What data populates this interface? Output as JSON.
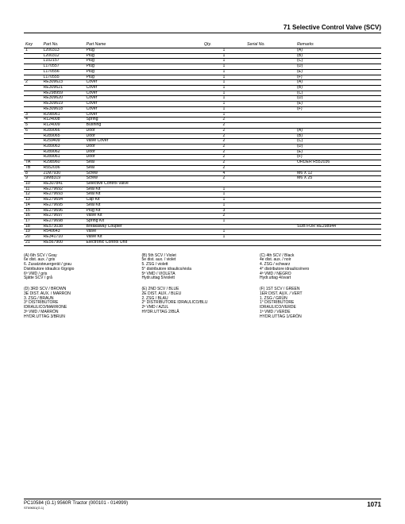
{
  "header": {
    "title": "71 Selective Control Valve (SCV)"
  },
  "columns": [
    "Key",
    "Part No.",
    "Part Name",
    "Qty.",
    "Serial No.",
    "Remarks"
  ],
  "rows": [
    [
      "1",
      "L200313",
      "Plug",
      "1",
      "",
      "(A)"
    ],
    [
      "",
      "L200312",
      "Plug",
      "1",
      "",
      "(B)"
    ],
    [
      "",
      "L102157",
      "Plug",
      "1",
      "",
      "(C)"
    ],
    [
      "",
      "L170557",
      "Plug",
      "1",
      "",
      "(D)"
    ],
    [
      "",
      "L170556",
      "Plug",
      "1",
      "",
      "(E)"
    ],
    [
      "",
      "L170555",
      "Plug",
      "1",
      "",
      "(F)"
    ],
    [
      "2",
      "RE309623",
      "Cover",
      "1",
      "",
      "(A)"
    ],
    [
      "",
      "RE309621",
      "Cover",
      "1",
      "",
      "(B)"
    ],
    [
      "",
      "RE298959",
      "Cover",
      "1",
      "",
      "(C)"
    ],
    [
      "",
      "RE309620",
      "Cover",
      "1",
      "",
      "(D)"
    ],
    [
      "",
      "RE309619",
      "Cover",
      "1",
      "",
      "(E)"
    ],
    [
      "",
      "RE309618",
      "Cover",
      "1",
      "",
      "(F)"
    ],
    [
      "3",
      "R298961",
      "Cover",
      "1",
      "",
      ""
    ],
    [
      "4",
      "R124008",
      "Spring",
      "2",
      "",
      ""
    ],
    [
      "5",
      "R124009",
      "Bushing",
      "2",
      "",
      ""
    ],
    [
      "6",
      "R289066",
      "Door",
      "2",
      "",
      "(A)"
    ],
    [
      "",
      "R289065",
      "Door",
      "2",
      "",
      "(B)"
    ],
    [
      "",
      "R259409",
      "Valve Cover",
      "2",
      "",
      "(C)"
    ],
    [
      "",
      "R289063",
      "Door",
      "2",
      "",
      "(D)"
    ],
    [
      "",
      "R289062",
      "Door",
      "2",
      "",
      "(E)"
    ],
    [
      "",
      "R289061",
      "Door",
      "2",
      "",
      "(F)"
    ],
    [
      "7A",
      "R298960",
      "Seal",
      "2",
      "",
      "ORDER R552036"
    ],
    [
      "7B",
      "R552036",
      "Seal",
      "2",
      "",
      ""
    ],
    [
      "8",
      "21M7930",
      "Screw",
      "4",
      "",
      "M6 X 12"
    ],
    [
      "9",
      "19M8319",
      "Screw",
      "2",
      "",
      "M6 X 25"
    ],
    [
      "10",
      "RE307841",
      "Selective Control Valve",
      "",
      "",
      ""
    ],
    [
      "11",
      "RE279692",
      "Seal Kit",
      "1",
      "",
      ""
    ],
    [
      "12",
      "RE279693",
      "Seal Kit",
      "1",
      "",
      ""
    ],
    [
      "13",
      "RE279694",
      "Cap Kit",
      "1",
      "",
      ""
    ],
    [
      "14",
      "RE279695",
      "Seal Kit",
      "1",
      "",
      ""
    ],
    [
      "15",
      "RE279696",
      "Plug Kit",
      "3",
      "",
      ""
    ],
    [
      "16",
      "RE279697",
      "Valve Kit",
      "2",
      "",
      ""
    ],
    [
      "17",
      "RE279698",
      "Spring Kit",
      "1",
      "",
      ""
    ],
    [
      "18",
      "RE573038",
      "Breakaway Coupler",
      "",
      "",
      "SUB FOR RE298944"
    ],
    [
      "19",
      "R540643",
      "Valve",
      "1",
      "",
      ""
    ],
    [
      "20",
      "RE341710",
      "Valve Kit",
      "1",
      "",
      ""
    ],
    [
      "21",
      "RE567900",
      "Electronic Control Unit",
      "",
      "",
      ""
    ]
  ],
  "notes": [
    {
      "hdr": "(A) 6th SCV / Gray",
      "lines": [
        "6e dist. aux. / gris",
        "6. Zusatzsteuergerät / grau",
        "Distributore idraulico 6/grigio",
        "6ª VMD / gris",
        "Sjätte SCV / grå"
      ]
    },
    {
      "hdr": "(B) 5th SCV / Violet",
      "lines": [
        "5e dist. aux. / violet",
        "5. ZSG / violett",
        "5° distributore idraulico/viola",
        "5ª VMD / VIOLETA",
        "Hydr.uttag 5/violett"
      ]
    },
    {
      "hdr": "(C) 4th SCV / Black",
      "lines": [
        "4e dist. aux. / noir",
        "4. ZSG / schwarz",
        "4° distributore idraulico/nero",
        "4ª VMD / NEGRO",
        "Hydr.uttag 4/svart"
      ]
    },
    {
      "hdr": "(D) 3RD SCV / BROWN",
      "lines": [
        "3E DIST. AUX. / MARRON",
        "3. ZSG / BRAUN",
        "3° DISTRIBUTORE",
        "IDRAULICO/MARRONE",
        "3ª VMD / MARRÓN",
        "HYDR.UTTAG 3/BRUN"
      ]
    },
    {
      "hdr": "(E) 2ND SCV / BLUE",
      "lines": [
        "2E DIST. AUX. / BLEU",
        "2. ZSG / BLAU",
        "2° DISTRIBUTORE IDRAULICO/BLU",
        "2ª VMD / AZUL",
        "HYDR.UTTAG 2/BLÅ"
      ]
    },
    {
      "hdr": "(F) 1ST SCV / GREEN",
      "lines": [
        "1ER DIST. AUX. / VERT",
        "1. ZSG / GRÜN",
        "1° DISTRIBUTORE",
        "IDRAULICO/VERDE",
        "1ª VMD / VERDE",
        "HYDR.UTTAG 1/GRÖN"
      ]
    }
  ],
  "footer": {
    "left_main": "PC10584   (G.1)    9560R Tractor (000101 - 014999)",
    "left_tiny": "ST69651(G.1)",
    "page": "1071"
  }
}
